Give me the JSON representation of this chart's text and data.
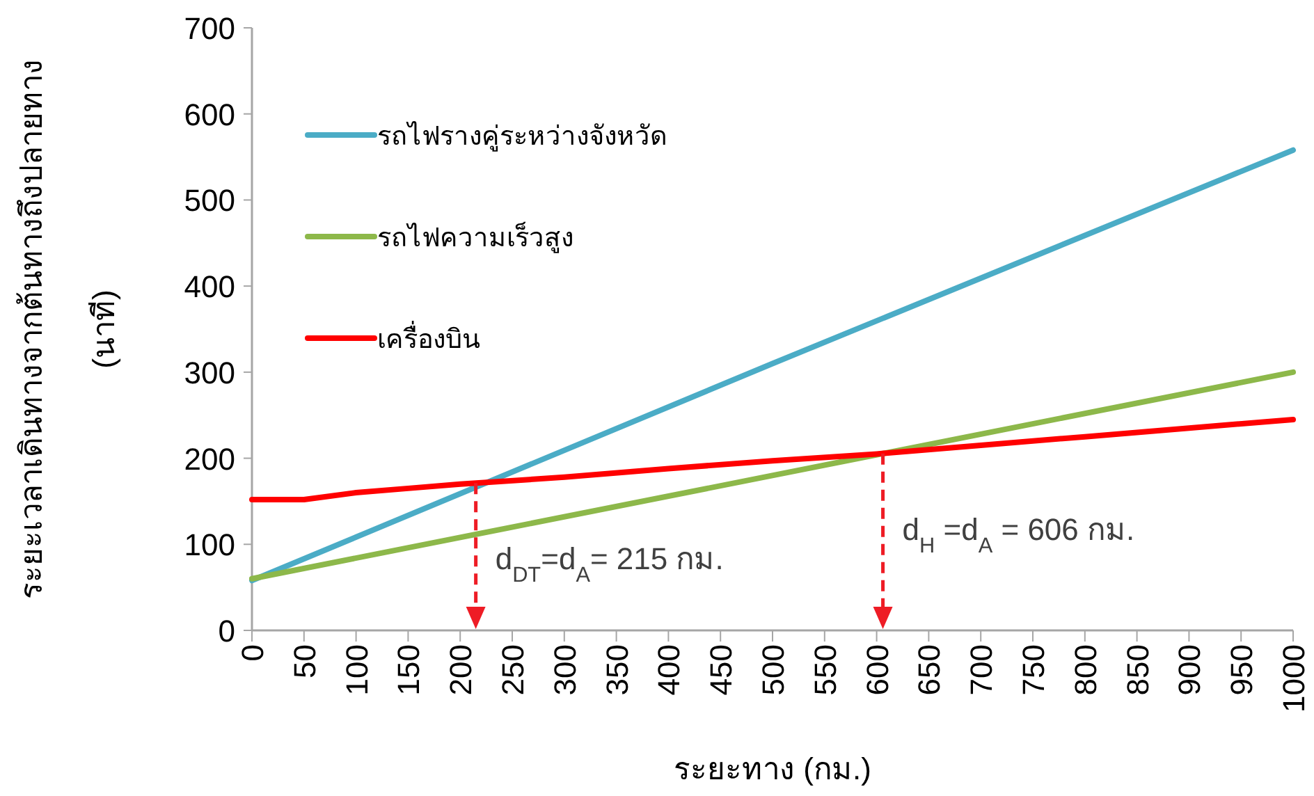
{
  "chart_data": {
    "type": "line",
    "ylabel": "ระยะเวลาเดินทางจากต้นทางถึงปลายทาง\n(นาที)",
    "xlabel": "ระยะทาง (กม.)",
    "xlim": [
      0,
      1000
    ],
    "xticks": [
      0,
      50,
      100,
      150,
      200,
      250,
      300,
      350,
      400,
      450,
      500,
      550,
      600,
      650,
      700,
      750,
      800,
      850,
      900,
      950,
      1000
    ],
    "ylim": [
      0,
      700
    ],
    "yticks": [
      0,
      100,
      200,
      300,
      400,
      500,
      600,
      700
    ],
    "legend": "top left",
    "grid": false,
    "line_style": "solid",
    "series": [
      {
        "name": "รถไฟรางคู่ระหว่างจังหวัด",
        "color": "#4bacc6",
        "x": [
          0,
          500,
          1000
        ],
        "values": [
          58,
          310,
          558
        ]
      },
      {
        "name": "รถไฟความเร็วสูง",
        "color": "#8db84a",
        "x": [
          0,
          1000
        ],
        "values": [
          60,
          300
        ]
      },
      {
        "name": "เครื่องบิน",
        "color": "#ff0000",
        "x": [
          0,
          50,
          100,
          150,
          200,
          300,
          400,
          500,
          600,
          700,
          800,
          900,
          1000
        ],
        "values": [
          152,
          152,
          160,
          165,
          170,
          178,
          188,
          197,
          205,
          215,
          225,
          235,
          245
        ]
      }
    ],
    "ref_lines": [
      {
        "axis": "x",
        "value": 215,
        "color": "#ee1c25",
        "line_style": "dashed",
        "label": "d$_{DT}$=d$_{A}$= 215 กม."
      },
      {
        "axis": "x",
        "value": 606,
        "color": "#ee1c25",
        "line_style": "dashed",
        "label": "d$_{H}$ =d$_{A}$ = 606 กม."
      }
    ]
  }
}
